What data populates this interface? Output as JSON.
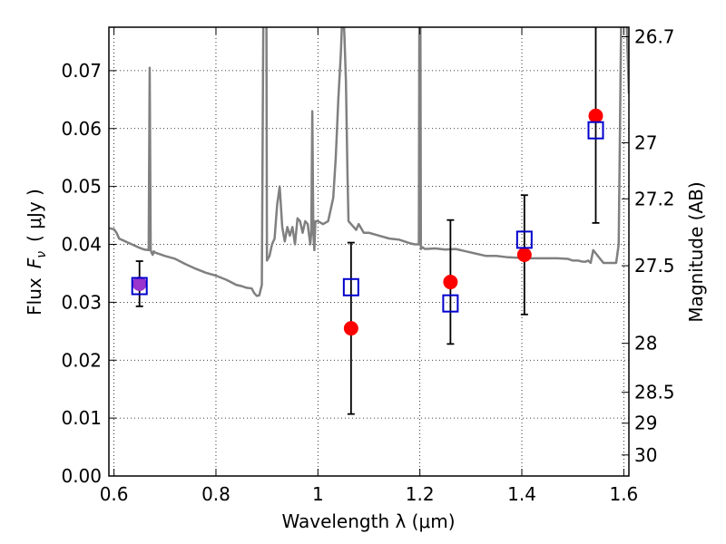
{
  "chart_data": {
    "type": "scatter",
    "xlabel": "Wavelength  λ (μm)",
    "ylabel_prefix": "Flux",
    "ylabel_symbol": "F",
    "ylabel_subscript": "ν",
    "ylabel_unit": "( μJy )",
    "y2label": "Magnitude (AB)",
    "xlim": [
      0.59,
      1.61
    ],
    "ylim": [
      0.0,
      0.0775
    ],
    "x_ticks": [
      0.6,
      0.8,
      1.0,
      1.2,
      1.4,
      1.6
    ],
    "x_tick_labels": [
      "0.6",
      "0.8",
      "1",
      "1.2",
      "1.4",
      "1.6"
    ],
    "y_ticks": [
      0.0,
      0.01,
      0.02,
      0.03,
      0.04,
      0.05,
      0.06,
      0.07
    ],
    "y_tick_labels": [
      "0.00",
      "0.01",
      "0.02",
      "0.03",
      "0.04",
      "0.05",
      "0.06",
      "0.07"
    ],
    "magnitude_ticks": [
      {
        "mag": 26.7,
        "label": "26.7"
      },
      {
        "mag": 27.0,
        "label": "27"
      },
      {
        "mag": 27.2,
        "label": "27.2"
      },
      {
        "mag": 27.5,
        "label": "27.5"
      },
      {
        "mag": 28.0,
        "label": "28"
      },
      {
        "mag": 28.5,
        "label": "28.5"
      },
      {
        "mag": 29.0,
        "label": "29"
      },
      {
        "mag": 30.0,
        "label": "30"
      }
    ],
    "grid": true,
    "colors": {
      "observed": "#ff0000",
      "model": "#0000cc",
      "sed": "#808080",
      "errorbar": "#000000",
      "overlap": "#9933cc"
    },
    "observed": [
      {
        "x": 0.65,
        "y": 0.0332,
        "err": 0.0039
      },
      {
        "x": 1.065,
        "y": 0.0255,
        "err": 0.0148
      },
      {
        "x": 1.26,
        "y": 0.0335,
        "err": 0.0107
      },
      {
        "x": 1.405,
        "y": 0.0382,
        "err": 0.0103
      },
      {
        "x": 1.545,
        "y": 0.0622,
        "err": 0.0185
      }
    ],
    "model": [
      {
        "x": 0.65,
        "y": 0.0328
      },
      {
        "x": 1.065,
        "y": 0.0326
      },
      {
        "x": 1.26,
        "y": 0.0298
      },
      {
        "x": 1.405,
        "y": 0.0408
      },
      {
        "x": 1.545,
        "y": 0.0597
      }
    ],
    "sed_x": [
      0.59,
      0.6,
      0.605,
      0.61,
      0.62,
      0.63,
      0.64,
      0.65,
      0.66,
      0.668,
      0.67,
      0.672,
      0.674,
      0.676,
      0.678,
      0.68,
      0.7,
      0.72,
      0.74,
      0.76,
      0.78,
      0.8,
      0.82,
      0.84,
      0.85,
      0.86,
      0.87,
      0.875,
      0.88,
      0.885,
      0.89,
      0.893,
      0.895,
      0.897,
      0.899,
      0.9,
      0.905,
      0.91,
      0.915,
      0.92,
      0.925,
      0.93,
      0.935,
      0.94,
      0.945,
      0.95,
      0.955,
      0.96,
      0.965,
      0.97,
      0.975,
      0.98,
      0.985,
      0.987,
      0.989,
      0.991,
      0.993,
      0.995,
      1.0,
      1.01,
      1.02,
      1.03,
      1.035,
      1.04,
      1.045,
      1.048,
      1.05,
      1.052,
      1.055,
      1.058,
      1.06,
      1.065,
      1.07,
      1.075,
      1.08,
      1.09,
      1.1,
      1.12,
      1.14,
      1.16,
      1.18,
      1.19,
      1.198,
      1.199,
      1.2,
      1.201,
      1.202,
      1.205,
      1.21,
      1.23,
      1.25,
      1.27,
      1.29,
      1.31,
      1.33,
      1.35,
      1.37,
      1.39,
      1.41,
      1.43,
      1.45,
      1.47,
      1.49,
      1.5,
      1.51,
      1.52,
      1.525,
      1.53,
      1.535,
      1.54,
      1.56,
      1.58,
      1.585,
      1.59,
      1.595,
      1.6,
      1.605,
      1.61
    ],
    "sed_y": [
      0.0428,
      0.0426,
      0.042,
      0.041,
      0.0406,
      0.0402,
      0.0398,
      0.0394,
      0.0391,
      0.039,
      0.0705,
      0.039,
      0.0385,
      0.0382,
      0.0388,
      0.0386,
      0.038,
      0.0375,
      0.0366,
      0.0358,
      0.0351,
      0.0346,
      0.0339,
      0.033,
      0.0328,
      0.0325,
      0.0324,
      0.0316,
      0.0311,
      0.0312,
      0.033,
      0.08,
      0.08,
      0.08,
      0.08,
      0.0372,
      0.038,
      0.04,
      0.041,
      0.0468,
      0.05,
      0.043,
      0.0405,
      0.043,
      0.0415,
      0.043,
      0.04,
      0.0445,
      0.044,
      0.042,
      0.044,
      0.0435,
      0.04,
      0.042,
      0.063,
      0.042,
      0.039,
      0.044,
      0.044,
      0.0435,
      0.044,
      0.048,
      0.055,
      0.065,
      0.073,
      0.08,
      0.08,
      0.076,
      0.068,
      0.052,
      0.044,
      0.0435,
      0.043,
      0.0425,
      0.0435,
      0.042,
      0.042,
      0.0415,
      0.041,
      0.0408,
      0.0402,
      0.04,
      0.04,
      0.08,
      0.08,
      0.08,
      0.0392,
      0.0395,
      0.0392,
      0.0393,
      0.0391,
      0.0392,
      0.0388,
      0.0384,
      0.038,
      0.038,
      0.0378,
      0.0377,
      0.0376,
      0.0376,
      0.0376,
      0.0376,
      0.0375,
      0.0372,
      0.0372,
      0.037,
      0.037,
      0.0372,
      0.0368,
      0.039,
      0.0368,
      0.0368,
      0.0368,
      0.04,
      0.08,
      0.08,
      0.08,
      0.066
    ]
  }
}
